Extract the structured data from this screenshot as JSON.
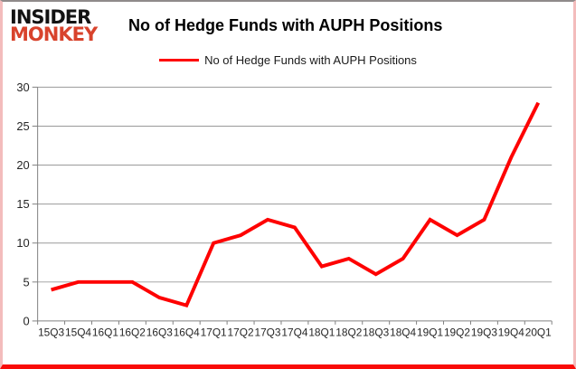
{
  "header": {
    "logo_line1": "INSIDER",
    "logo_line2": "MONKEY",
    "logo_color_primary": "#131313",
    "logo_color_secondary": "#d8432c",
    "title": "No of Hedge Funds with AUPH Positions"
  },
  "legend": {
    "label": "No of Hedge Funds with AUPH Positions",
    "marker_color": "#fe0000"
  },
  "chart_data": {
    "type": "line",
    "title": "No of Hedge Funds with AUPH Positions",
    "categories": [
      "15Q3",
      "15Q4",
      "16Q1",
      "16Q2",
      "16Q3",
      "16Q4",
      "17Q1",
      "17Q2",
      "17Q3",
      "17Q4",
      "18Q1",
      "18Q2",
      "18Q3",
      "18Q4",
      "19Q1",
      "19Q2",
      "19Q3",
      "19Q4",
      "20Q1"
    ],
    "series": [
      {
        "name": "No of Hedge Funds with AUPH Positions",
        "color": "#fe0000",
        "values": [
          4,
          5,
          5,
          5,
          3,
          2,
          10,
          11,
          13,
          12,
          7,
          8,
          6,
          8,
          13,
          11,
          13,
          21,
          28
        ]
      }
    ],
    "xlabel": "",
    "ylabel": "",
    "ylim": [
      0,
      30
    ],
    "ytick_interval": 5,
    "yticks": [
      0,
      5,
      10,
      15,
      20,
      25,
      30
    ],
    "grid": true,
    "legend_position": "top",
    "line_width": 4,
    "gridline_color": "#9a9a9a",
    "axis_color": "#808080",
    "tick_label_color": "#262626"
  }
}
